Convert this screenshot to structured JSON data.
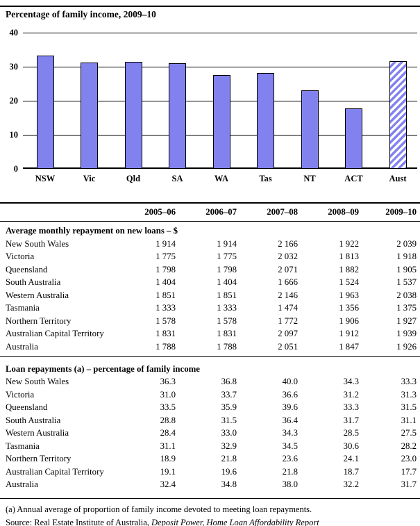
{
  "chart_data": {
    "type": "bar",
    "title": "Percentage of family income, 2009–10",
    "categories": [
      "NSW",
      "Vic",
      "Qld",
      "SA",
      "WA",
      "Tas",
      "NT",
      "ACT",
      "Aust"
    ],
    "values": [
      33.3,
      31.3,
      31.5,
      31.1,
      27.5,
      28.2,
      23.0,
      17.7,
      31.7
    ],
    "ylim": [
      0,
      40
    ],
    "yticks": [
      40,
      30,
      20,
      10,
      0
    ],
    "grid": true,
    "legend_position": "none",
    "bar_color": "#8282ef",
    "hatched_categories": [
      "Aust"
    ]
  },
  "table": {
    "columns": [
      "2005–06",
      "2006–07",
      "2007–08",
      "2008–09",
      "2009–10"
    ],
    "sections": [
      {
        "title": "Average monthly repayment on new loans – $",
        "rows": [
          {
            "label": "New South Wales",
            "values": [
              "1 914",
              "1 914",
              "2 166",
              "1 922",
              "2 039"
            ]
          },
          {
            "label": "Victoria",
            "values": [
              "1 775",
              "1 775",
              "2 032",
              "1 813",
              "1 918"
            ]
          },
          {
            "label": "Queensland",
            "values": [
              "1 798",
              "1 798",
              "2 071",
              "1 882",
              "1 905"
            ]
          },
          {
            "label": "South Australia",
            "values": [
              "1 404",
              "1 404",
              "1 666",
              "1 524",
              "1 537"
            ]
          },
          {
            "label": "Western Australia",
            "values": [
              "1 851",
              "1 851",
              "2 146",
              "1 963",
              "2 038"
            ]
          },
          {
            "label": "Tasmania",
            "values": [
              "1 333",
              "1 333",
              "1 474",
              "1 356",
              "1 375"
            ]
          },
          {
            "label": "Northern Territory",
            "values": [
              "1 578",
              "1 578",
              "1 772",
              "1 906",
              "1 927"
            ]
          },
          {
            "label": "Australian Capital Territory",
            "values": [
              "1 831",
              "1 831",
              "2 097",
              "1 912",
              "1 939"
            ]
          },
          {
            "label": "Australia",
            "values": [
              "1 788",
              "1 788",
              "2 051",
              "1 847",
              "1 926"
            ]
          }
        ]
      },
      {
        "title": "Loan repayments (a) – percentage of family income",
        "rows": [
          {
            "label": "New South Wales",
            "values": [
              "36.3",
              "36.8",
              "40.0",
              "34.3",
              "33.3"
            ]
          },
          {
            "label": "Victoria",
            "values": [
              "31.0",
              "33.7",
              "36.6",
              "31.2",
              "31.3"
            ]
          },
          {
            "label": "Queensland",
            "values": [
              "33.5",
              "35.9",
              "39.6",
              "33.3",
              "31.5"
            ]
          },
          {
            "label": "South Australia",
            "values": [
              "28.8",
              "31.5",
              "36.4",
              "31.7",
              "31.1"
            ]
          },
          {
            "label": "Western Australia",
            "values": [
              "28.4",
              "33.0",
              "34.3",
              "28.5",
              "27.5"
            ]
          },
          {
            "label": "Tasmania",
            "values": [
              "31.1",
              "32.9",
              "34.5",
              "30.6",
              "28.2"
            ]
          },
          {
            "label": "Northern Territory",
            "values": [
              "18.9",
              "21.8",
              "23.6",
              "24.1",
              "23.0"
            ]
          },
          {
            "label": "Australian Capital Territory",
            "values": [
              "19.1",
              "19.6",
              "21.8",
              "18.7",
              "17.7"
            ]
          },
          {
            "label": "Australia",
            "values": [
              "32.4",
              "34.8",
              "38.0",
              "32.2",
              "31.7"
            ]
          }
        ]
      }
    ]
  },
  "footer": {
    "footnote": "(a) Annual average of proportion of family income devoted to meeting loan repayments.",
    "source_prefix": "Source: Real Estate Institute of Australia, ",
    "source_italic": "Deposit Power, Home Loan Affordability Report"
  }
}
